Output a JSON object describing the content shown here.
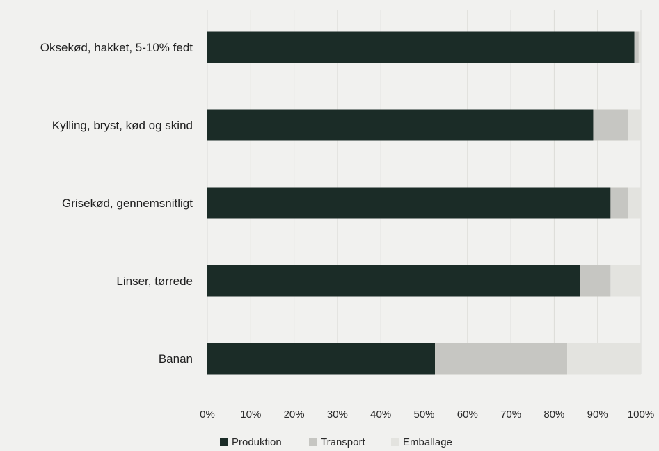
{
  "chart_data": {
    "type": "bar",
    "orientation": "horizontal",
    "stacked": true,
    "normalized": true,
    "categories": [
      "Oksekød, hakket, 5-10% fedt",
      "Kylling, bryst, kød og skind",
      "Grisekød, gennemsnitligt",
      "Linser, tørrede",
      "Banan"
    ],
    "series": [
      {
        "name": "Produktion",
        "color": "#1b2c27",
        "values": [
          98.5,
          89.0,
          93.0,
          86.0,
          52.5
        ]
      },
      {
        "name": "Transport",
        "color": "#c6c6c2",
        "values": [
          1.0,
          8.0,
          4.0,
          7.0,
          30.5
        ]
      },
      {
        "name": "Emballage",
        "color": "#e3e3df",
        "values": [
          0.5,
          3.0,
          3.0,
          7.0,
          17.0
        ]
      }
    ],
    "x_ticks": [
      "0%",
      "10%",
      "20%",
      "30%",
      "40%",
      "50%",
      "60%",
      "70%",
      "80%",
      "90%",
      "100%"
    ],
    "xlim": [
      0,
      100
    ],
    "grid": "vertical",
    "legend": {
      "position": "bottom",
      "entries": [
        "Produktion",
        "Transport",
        "Emballage"
      ]
    }
  }
}
